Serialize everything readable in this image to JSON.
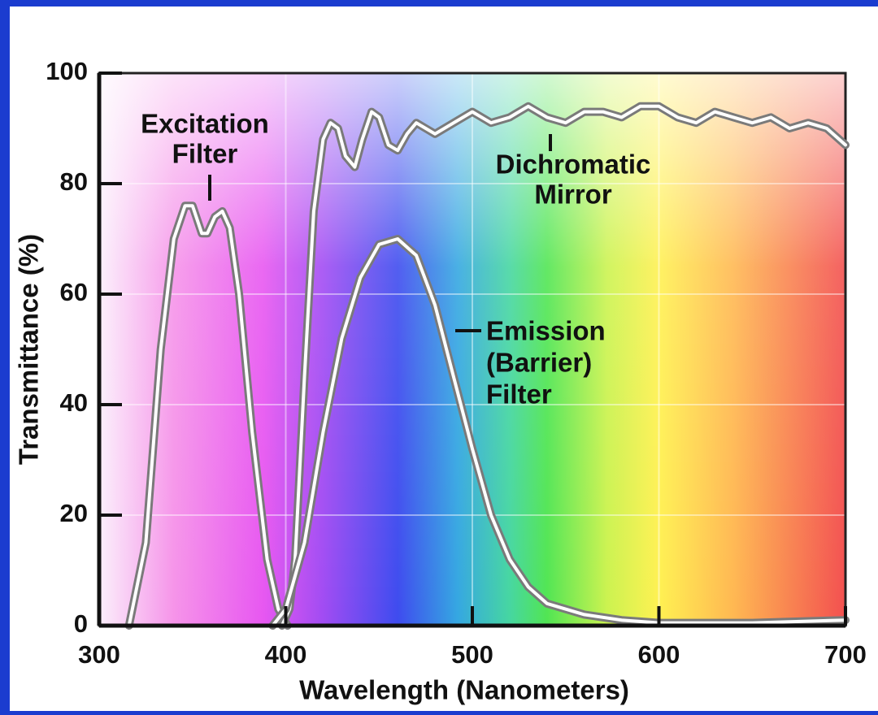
{
  "chart_data": {
    "type": "line",
    "xlabel": "Wavelength (Nanometers)",
    "ylabel": "Transmittance (%)",
    "xlim": [
      300,
      700
    ],
    "ylim": [
      0,
      100
    ],
    "xticks": [
      300,
      400,
      500,
      600,
      700
    ],
    "yticks": [
      0,
      20,
      40,
      60,
      80,
      100
    ],
    "grid": true,
    "annotations": [
      {
        "lines": [
          "Excitation",
          "Filter"
        ]
      },
      {
        "lines": [
          "Dichromatic",
          "Mirror"
        ]
      },
      {
        "lines": [
          "Emission",
          "(Barrier)",
          "Filter"
        ]
      }
    ],
    "series": [
      {
        "color": "#7a7a7a",
        "x": [
          316,
          325,
          333,
          340,
          346,
          350,
          355,
          358,
          362,
          366,
          370,
          375,
          382,
          390,
          396,
          401
        ],
        "values": [
          0,
          15,
          50,
          70,
          76,
          76,
          71,
          71,
          74,
          75,
          72,
          60,
          35,
          12,
          3,
          0
        ]
      },
      {
        "color": "#7a7a7a",
        "x": [
          398,
          402,
          405,
          410,
          415,
          420,
          424,
          428,
          432,
          437,
          441,
          446,
          450,
          455,
          460,
          465,
          470,
          475,
          480,
          490,
          500,
          510,
          520,
          530,
          540,
          550,
          560,
          570,
          580,
          590,
          600,
          610,
          620,
          630,
          640,
          650,
          660,
          670,
          680,
          690,
          700
        ],
        "values": [
          0,
          3,
          12,
          45,
          75,
          88,
          91,
          90,
          85,
          83,
          88,
          93,
          92,
          87,
          86,
          89,
          91,
          90,
          89,
          91,
          93,
          91,
          92,
          94,
          92,
          91,
          93,
          93,
          92,
          94,
          94,
          92,
          91,
          93,
          92,
          91,
          92,
          90,
          91,
          90,
          87
        ]
      },
      {
        "color": "#7a7a7a",
        "x": [
          393,
          400,
          410,
          420,
          430,
          440,
          450,
          460,
          470,
          480,
          490,
          500,
          510,
          520,
          530,
          540,
          560,
          580,
          600,
          650,
          700
        ],
        "values": [
          0,
          3,
          15,
          35,
          52,
          63,
          69,
          70,
          67,
          58,
          45,
          32,
          20,
          12,
          7,
          4,
          2,
          1,
          0.5,
          0.5,
          1
        ]
      }
    ]
  }
}
